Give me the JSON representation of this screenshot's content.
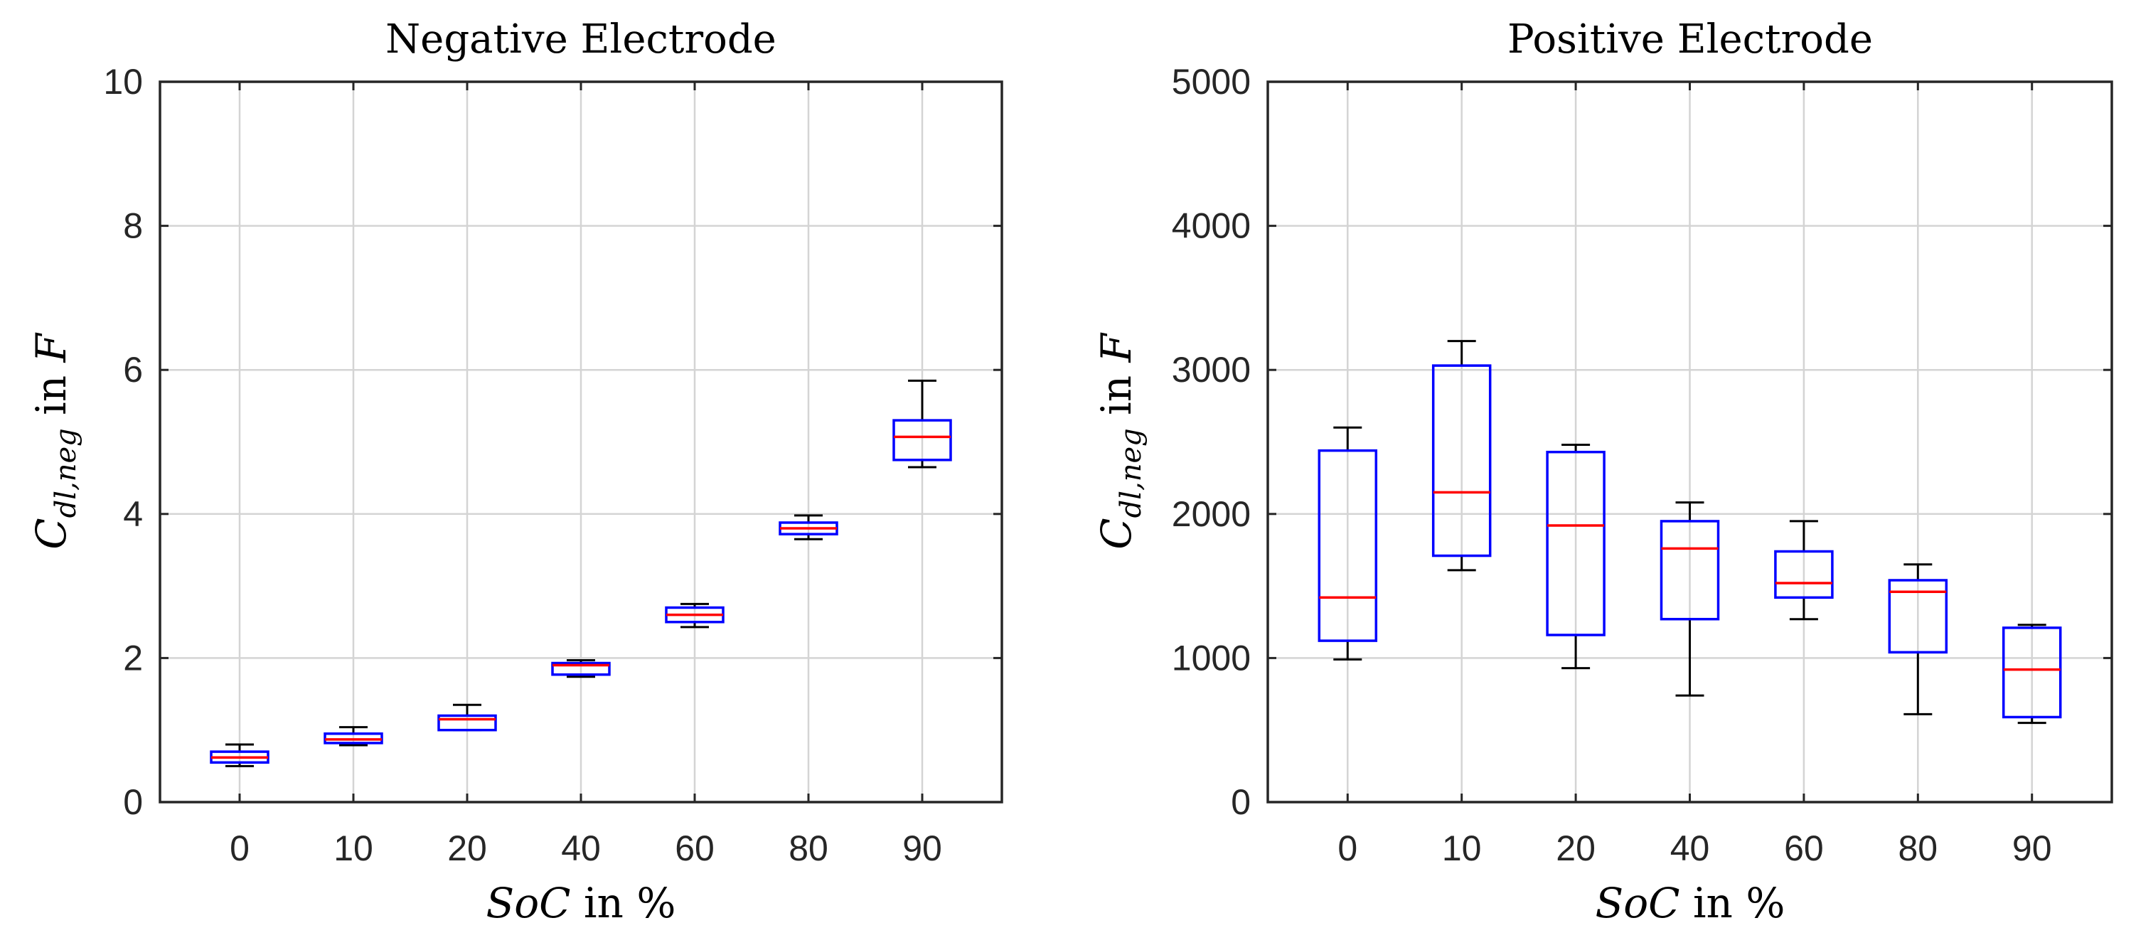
{
  "chart_data": [
    {
      "type": "box",
      "title": "Negative Electrode",
      "xlabel": {
        "italic": "SoC",
        "rest": " in %"
      },
      "ylabel": {
        "main": "C",
        "sub": "dl,neg",
        "rest": " in ",
        "unit": "F"
      },
      "categories": [
        "0",
        "10",
        "20",
        "40",
        "60",
        "80",
        "90"
      ],
      "ylim": [
        0,
        10
      ],
      "yticks": [
        0,
        2,
        4,
        6,
        8,
        10
      ],
      "grid": true,
      "boxes": [
        {
          "whisker_low": 0.5,
          "q1": 0.55,
          "median": 0.62,
          "q3": 0.7,
          "whisker_high": 0.8
        },
        {
          "whisker_low": 0.79,
          "q1": 0.82,
          "median": 0.87,
          "q3": 0.95,
          "whisker_high": 1.04
        },
        {
          "whisker_low": 1.0,
          "q1": 1.0,
          "median": 1.15,
          "q3": 1.2,
          "whisker_high": 1.35
        },
        {
          "whisker_low": 1.74,
          "q1": 1.77,
          "median": 1.9,
          "q3": 1.93,
          "whisker_high": 1.97
        },
        {
          "whisker_low": 2.43,
          "q1": 2.5,
          "median": 2.6,
          "q3": 2.7,
          "whisker_high": 2.75
        },
        {
          "whisker_low": 3.65,
          "q1": 3.72,
          "median": 3.8,
          "q3": 3.88,
          "whisker_high": 3.98
        },
        {
          "whisker_low": 4.65,
          "q1": 4.75,
          "median": 5.07,
          "q3": 5.3,
          "whisker_high": 5.85
        }
      ]
    },
    {
      "type": "box",
      "title": "Positive Electrode",
      "xlabel": {
        "italic": "SoC",
        "rest": " in %"
      },
      "ylabel": {
        "main": "C",
        "sub": "dl,neg",
        "rest": " in ",
        "unit": "F"
      },
      "categories": [
        "0",
        "10",
        "20",
        "40",
        "60",
        "80",
        "90"
      ],
      "ylim": [
        0,
        5000
      ],
      "yticks": [
        0,
        1000,
        2000,
        3000,
        4000,
        5000
      ],
      "grid": true,
      "boxes": [
        {
          "whisker_low": 990,
          "q1": 1120,
          "median": 1420,
          "q3": 2440,
          "whisker_high": 2600
        },
        {
          "whisker_low": 1610,
          "q1": 1710,
          "median": 2150,
          "q3": 3030,
          "whisker_high": 3200
        },
        {
          "whisker_low": 930,
          "q1": 1160,
          "median": 1920,
          "q3": 2430,
          "whisker_high": 2480
        },
        {
          "whisker_low": 740,
          "q1": 1270,
          "median": 1760,
          "q3": 1950,
          "whisker_high": 2080
        },
        {
          "whisker_low": 1270,
          "q1": 1420,
          "median": 1520,
          "q3": 1740,
          "whisker_high": 1950
        },
        {
          "whisker_low": 610,
          "q1": 1040,
          "median": 1460,
          "q3": 1540,
          "whisker_high": 1650
        },
        {
          "whisker_low": 550,
          "q1": 590,
          "median": 920,
          "q3": 1210,
          "whisker_high": 1230
        }
      ]
    }
  ],
  "colors": {
    "box": "#0000ff",
    "median": "#ff0000",
    "whisker": "#000000"
  }
}
